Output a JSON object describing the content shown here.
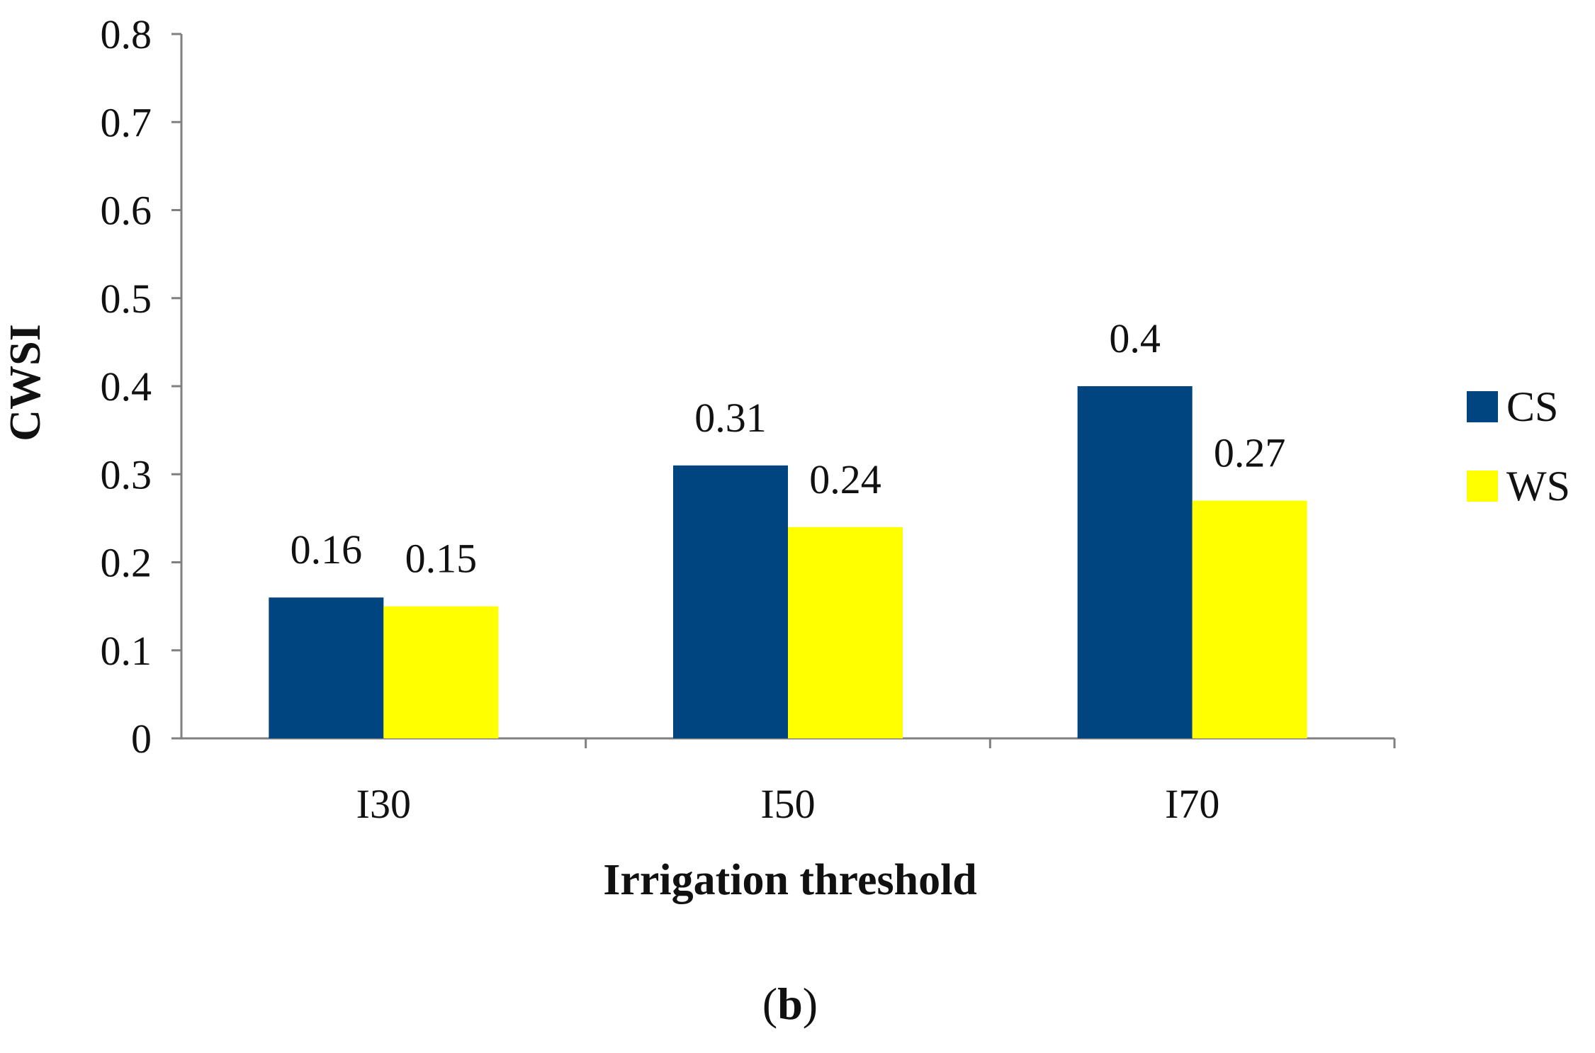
{
  "chart_data": {
    "type": "bar",
    "categories": [
      "I30",
      "I50",
      "I70"
    ],
    "series": [
      {
        "name": "CS",
        "values": [
          0.16,
          0.31,
          0.4
        ],
        "labels": [
          "0.16",
          "0.31",
          "0.4"
        ],
        "color": "#004480"
      },
      {
        "name": "WS",
        "values": [
          0.15,
          0.24,
          0.27
        ],
        "labels": [
          "0.15",
          "0.24",
          "0.27"
        ],
        "color": "#FFFF00"
      }
    ],
    "xlabel": "Irrigation threshold",
    "ylabel": "CWSI",
    "ylim": [
      0,
      0.8
    ],
    "yticks": [
      0,
      0.1,
      0.2,
      0.3,
      0.4,
      0.5,
      0.6,
      0.7,
      0.8
    ],
    "ytick_labels": [
      "0",
      "0.1",
      "0.2",
      "0.3",
      "0.4",
      "0.5",
      "0.6",
      "0.7",
      "0.8"
    ],
    "grid": false,
    "legend_position": "right",
    "axis_color": "#808080"
  },
  "caption": {
    "open": "(",
    "letter": "b",
    "close": ")"
  }
}
